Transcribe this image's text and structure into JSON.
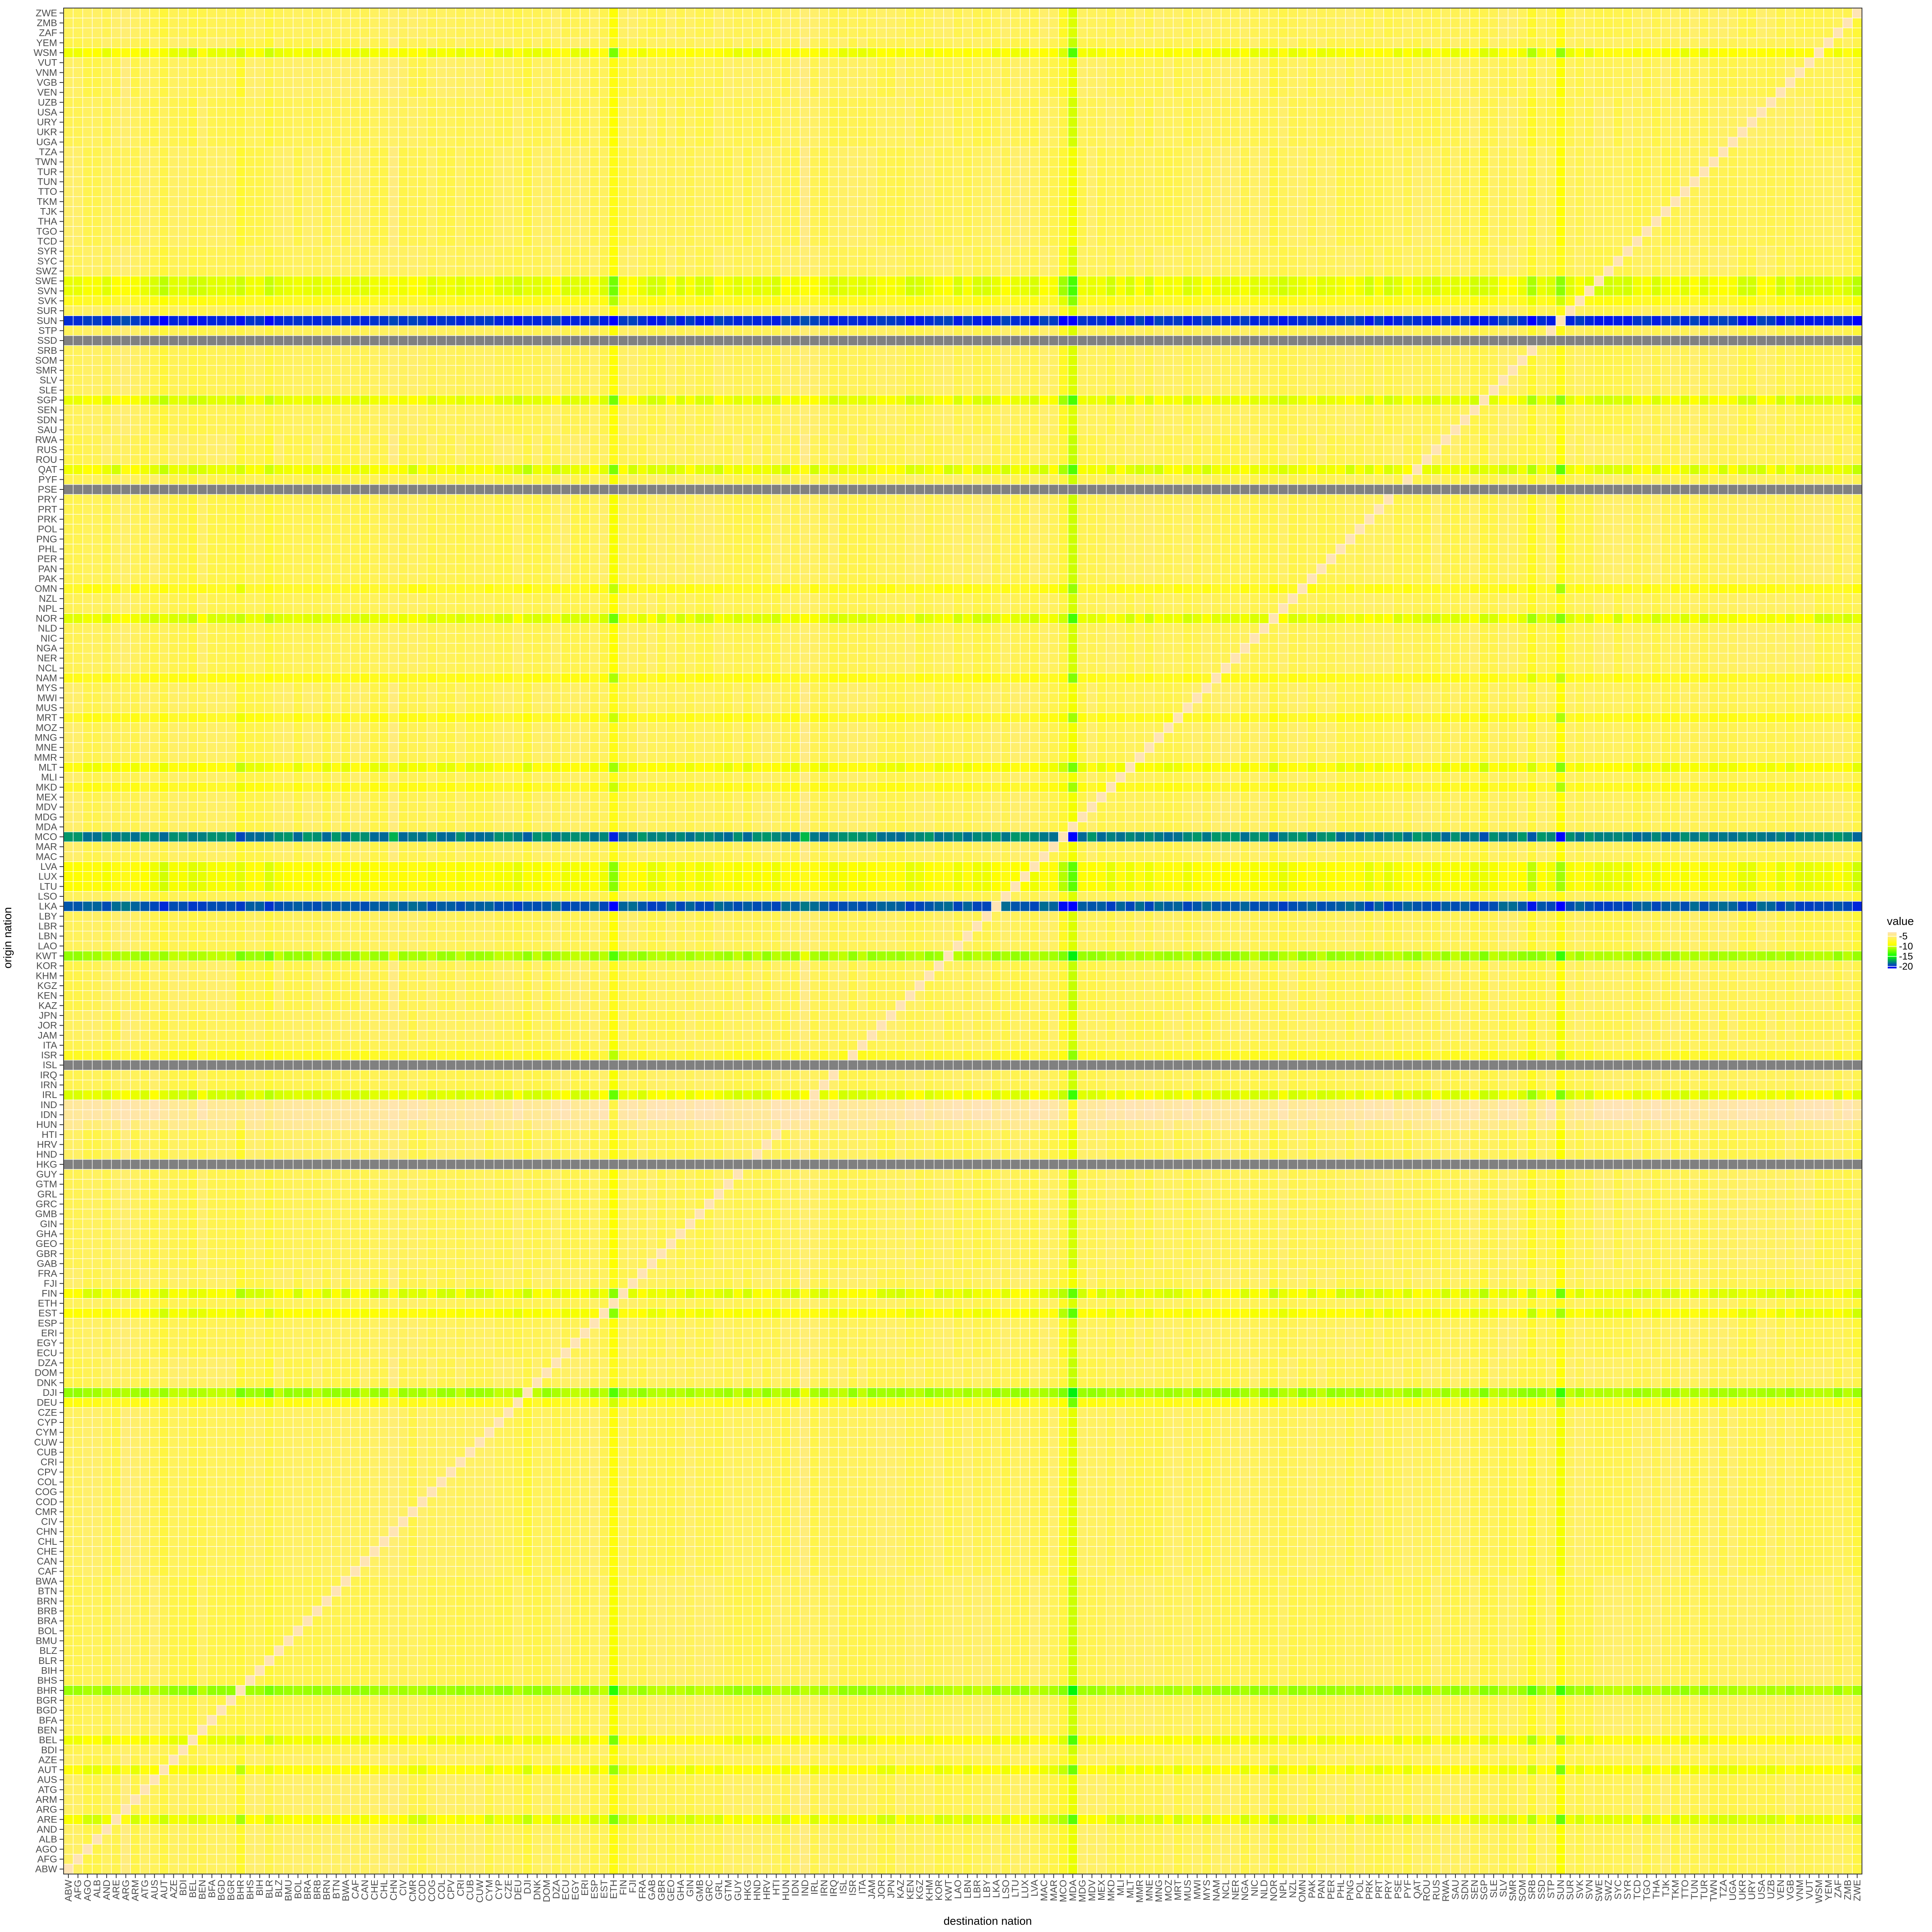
{
  "chart_data": {
    "type": "heatmap",
    "title": "",
    "xlabel": "destination nation",
    "ylabel": "origin nation",
    "legend": {
      "title": "value",
      "placement": "right",
      "breaks": [
        -5,
        -10,
        -15,
        -20
      ],
      "break_labels": [
        "-5",
        "-10",
        "-15",
        "-20"
      ],
      "range": [
        -21,
        -3
      ],
      "colors": [
        "#0000ff",
        "#00ff00",
        "#ffff00",
        "#ffe4b5"
      ]
    },
    "na_color": "#808080",
    "categories": [
      "ABW",
      "AFG",
      "AGO",
      "ALB",
      "AND",
      "ARE",
      "ARG",
      "ARM",
      "ATG",
      "AUS",
      "AUT",
      "AZE",
      "BDI",
      "BEL",
      "BEN",
      "BFA",
      "BGD",
      "BGR",
      "BHR",
      "BHS",
      "BIH",
      "BLR",
      "BLZ",
      "BMU",
      "BOL",
      "BRA",
      "BRB",
      "BRN",
      "BTN",
      "BWA",
      "CAF",
      "CAN",
      "CHE",
      "CHL",
      "CHN",
      "CIV",
      "CMR",
      "COD",
      "COG",
      "COL",
      "CPV",
      "CRI",
      "CUB",
      "CUW",
      "CYM",
      "CYP",
      "CZE",
      "DEU",
      "DJI",
      "DNK",
      "DOM",
      "DZA",
      "ECU",
      "EGY",
      "ERI",
      "ESP",
      "EST",
      "ETH",
      "FIN",
      "FJI",
      "FRA",
      "GAB",
      "GBR",
      "GEO",
      "GHA",
      "GIN",
      "GMB",
      "GRC",
      "GRL",
      "GTM",
      "GUY",
      "HKG",
      "HND",
      "HRV",
      "HTI",
      "HUN",
      "IDN",
      "IND",
      "IRL",
      "IRN",
      "IRQ",
      "ISL",
      "ISR",
      "ITA",
      "JAM",
      "JOR",
      "JPN",
      "KAZ",
      "KEN",
      "KGZ",
      "KHM",
      "KOR",
      "KWT",
      "LAO",
      "LBN",
      "LBR",
      "LBY",
      "LKA",
      "LSO",
      "LTU",
      "LUX",
      "LVA",
      "MAC",
      "MAR",
      "MCO",
      "MDA",
      "MDG",
      "MDV",
      "MEX",
      "MKD",
      "MLI",
      "MLT",
      "MMR",
      "MNE",
      "MNG",
      "MOZ",
      "MRT",
      "MUS",
      "MWI",
      "MYS",
      "NAM",
      "NCL",
      "NER",
      "NGA",
      "NIC",
      "NLD",
      "NOR",
      "NPL",
      "NZL",
      "OMN",
      "PAK",
      "PAN",
      "PER",
      "PHL",
      "PNG",
      "POL",
      "PRK",
      "PRT",
      "PRY",
      "PSE",
      "PYF",
      "QAT",
      "ROU",
      "RUS",
      "RWA",
      "SAU",
      "SDN",
      "SEN",
      "SGP",
      "SLE",
      "SLV",
      "SMR",
      "SOM",
      "SRB",
      "SSD",
      "STP",
      "SUN",
      "SUR",
      "SVK",
      "SVN",
      "SWE",
      "SWZ",
      "SYC",
      "SYR",
      "TCD",
      "TGO",
      "THA",
      "TJK",
      "TKM",
      "TTO",
      "TUN",
      "TUR",
      "TWN",
      "TZA",
      "UGA",
      "UKR",
      "URY",
      "USA",
      "UZB",
      "VEN",
      "VGB",
      "VNM",
      "VUT",
      "WSM",
      "YEM",
      "ZAF",
      "ZMB",
      "ZWE"
    ],
    "dest_column_offsets": {
      "ETH": -2.6,
      "MDA": -3.8,
      "SUN": -2.7,
      "SRB": -1.3,
      "MCO": -1.2,
      "BHR": -1.0,
      "CHN": 0.8,
      "ARG": 0.6,
      "IND": 1.0,
      "BLR": -0.8,
      "AUT": -0.5,
      "BEL": -0.5,
      "DJI": -0.6,
      "SGP": -0.6,
      "NOR": -0.5,
      "ZWE": -0.6
    },
    "row_levels": {
      "default": -6,
      "by_origin": {
        "BHR": -11,
        "DJI": -11,
        "KWT": -11,
        "SUN": -20,
        "MCO": -18,
        "LKA": -19,
        "SWE": -9.5,
        "SVN": -9.5,
        "NOR": -9.5,
        "FIN": -9.5,
        "SGP": -9.5,
        "ARE": -9.5,
        "QAT": -9.5,
        "IRL": -9.5,
        "LUX": -9,
        "LVA": -9,
        "LTU": -9,
        "MLT": -9,
        "EST": -9,
        "BEL": -9,
        "WSM": -9,
        "AUT": -9,
        "MRT": -8,
        "NAM": -8,
        "MKD": -8,
        "DEU": -8,
        "SVK": -8,
        "OMN": -8,
        "ISR": -7.5,
        "IDN": -3.5,
        "IND": -3.5,
        "HUN": -4.5
      },
      "missing_origins": [
        "SSD",
        "PSE",
        "ISL",
        "HKG"
      ],
      "diagonal": -3
    }
  }
}
